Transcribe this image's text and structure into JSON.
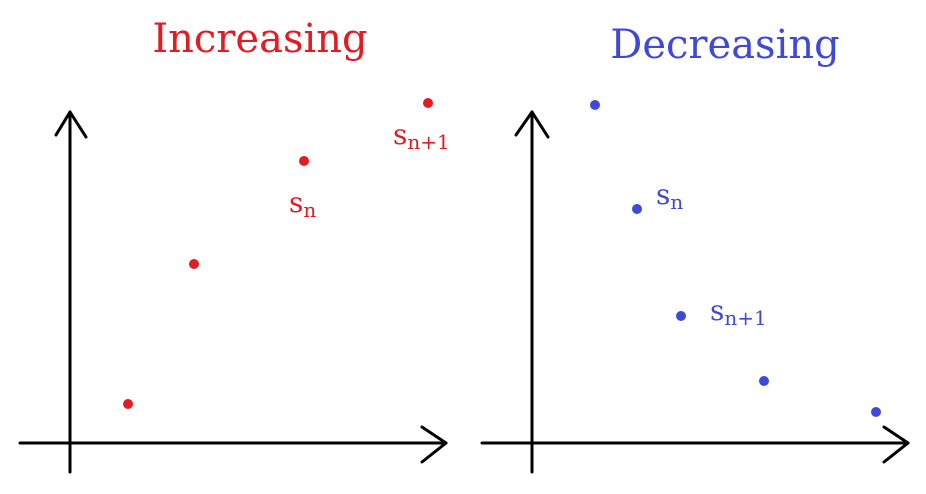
{
  "colors": {
    "increasing": "#e31b23",
    "decreasing": "#3f49d8",
    "axis": "#000000"
  },
  "increasing": {
    "title": "Increasing",
    "label_n": {
      "base": "s",
      "sub": "n"
    },
    "label_n1": {
      "base": "s",
      "sub": "n+1"
    }
  },
  "decreasing": {
    "title": "Decreasing",
    "label_n": {
      "base": "s",
      "sub": "n"
    },
    "label_n1": {
      "base": "s",
      "sub": "n+1"
    }
  }
}
